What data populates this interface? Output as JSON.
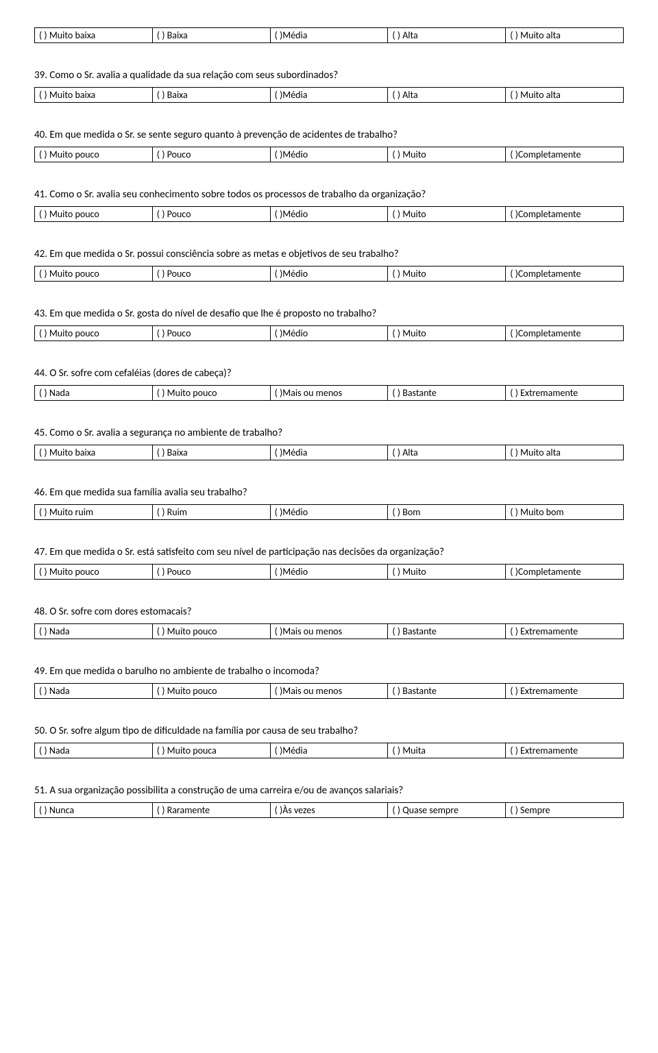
{
  "topOptions": {
    "o1": "(   ) Muito baixa",
    "o2": "(   ) Baixa",
    "o3": "(   )Média",
    "o4": "(   ) Alta",
    "o5": "(   ) Muito alta"
  },
  "q39": {
    "text": "39. Como o Sr. avalia a qualidade da sua relação com seus subordinados?",
    "o1": "(   ) Muito baixa",
    "o2": "(   ) Baixa",
    "o3": "(   )Média",
    "o4": "(   ) Alta",
    "o5": "(   ) Muito alta"
  },
  "q40": {
    "text": "40. Em que medida o Sr. se sente seguro quanto à prevenção de acidentes de trabalho?",
    "o1": "(   ) Muito pouco",
    "o2": "(   ) Pouco",
    "o3": "(   )Médio",
    "o4": "(   ) Muito",
    "o5": "(   )Completamente"
  },
  "q41": {
    "text": "41. Como o Sr. avalia seu conhecimento sobre todos os processos de trabalho da organização?",
    "o1": "(   ) Muito pouco",
    "o2": "(   ) Pouco",
    "o3": "(   )Médio",
    "o4": "(   ) Muito",
    "o5": "(   )Completamente"
  },
  "q42": {
    "text": "42. Em que medida o Sr. possui consciência sobre as metas e objetivos de seu trabalho?",
    "o1": "(   ) Muito pouco",
    "o2": "(   ) Pouco",
    "o3": "(   )Médio",
    "o4": "(   ) Muito",
    "o5": "(   )Completamente"
  },
  "q43": {
    "text": "43. Em que medida o Sr. gosta do nível de desafio que lhe é proposto no trabalho?",
    "o1": "(   ) Muito pouco",
    "o2": "(   ) Pouco",
    "o3": "(   )Médio",
    "o4": "(   ) Muito",
    "o5": "(   )Completamente"
  },
  "q44": {
    "text": "44. O Sr. sofre com cefaléias (dores de cabeça)?",
    "o1": "(   ) Nada",
    "o2": "(   ) Muito pouco",
    "o3": "(   )Mais ou menos",
    "o4": "(   ) Bastante",
    "o5": "(   ) Extremamente"
  },
  "q45": {
    "text": "45. Como o Sr. avalia a segurança no ambiente de trabalho?",
    "o1": "(   ) Muito baixa",
    "o2": "(   ) Baixa",
    "o3": "(   )Média",
    "o4": "(   ) Alta",
    "o5": "(   ) Muito alta"
  },
  "q46": {
    "text": "46. Em que medida sua família avalia seu trabalho?",
    "o1": "(   ) Muito ruim",
    "o2": "(   ) Ruim",
    "o3": "(   )Médio",
    "o4": "(   ) Bom",
    "o5": "(   ) Muito bom"
  },
  "q47": {
    "text": "47. Em que medida o Sr. está satisfeito com seu nível de participação nas decisões da organização?",
    "o1": "(   ) Muito pouco",
    "o2": "(   ) Pouco",
    "o3": "(   )Médio",
    "o4": "(   ) Muito",
    "o5": "(   )Completamente"
  },
  "q48": {
    "text": "48. O Sr. sofre com dores estomacais?",
    "o1": "(   ) Nada",
    "o2": "(   ) Muito pouco",
    "o3": "(   )Mais ou menos",
    "o4": "(   ) Bastante",
    "o5": "(   ) Extremamente"
  },
  "q49": {
    "text": "49. Em que medida o barulho no ambiente de trabalho o incomoda?",
    "o1": "(   ) Nada",
    "o2": "(   ) Muito pouco",
    "o3": "(   )Mais ou menos",
    "o4": "(   ) Bastante",
    "o5": "(   ) Extremamente"
  },
  "q50": {
    "text": "50. O Sr. sofre algum tipo de dificuldade na família por causa de seu trabalho?",
    "o1": "(   ) Nada",
    "o2": "(   ) Muito pouca",
    "o3": "(   )Média",
    "o4": "(   ) Muita",
    "o5": "(   ) Extremamente"
  },
  "q51": {
    "text": "51. A sua organização possibilita a construção de uma carreira e/ou de avanços salariais?",
    "o1": "(   ) Nunca",
    "o2": "(   ) Raramente",
    "o3": "(   )Às vezes",
    "o4": "(   ) Quase sempre",
    "o5": "(   ) Sempre"
  }
}
